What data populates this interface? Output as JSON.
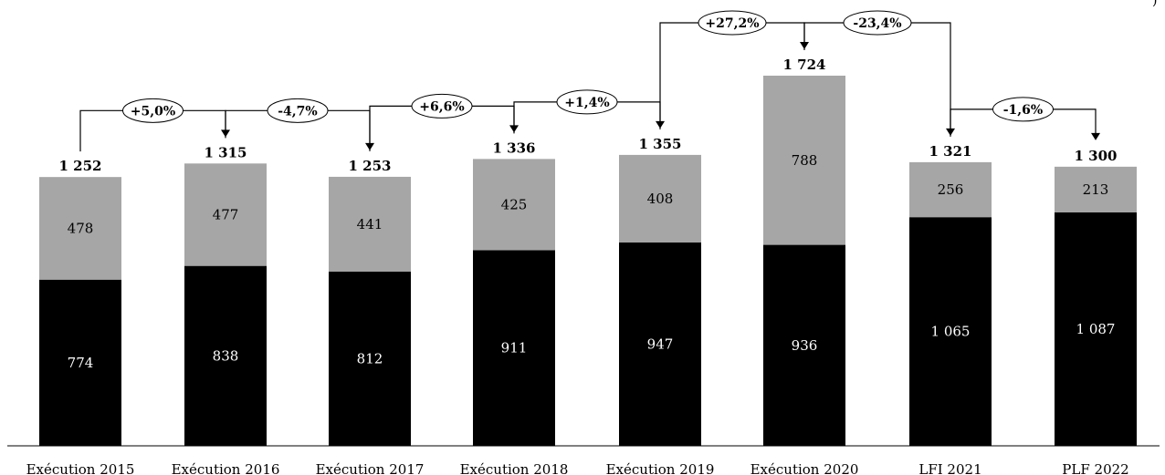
{
  "chart_data": {
    "type": "bar",
    "stacked": true,
    "categories": [
      "Exécution 2015",
      "Exécution 2016",
      "Exécution 2017",
      "Exécution 2018",
      "Exécution 2019",
      "Exécution 2020",
      "LFI 2021",
      "PLF 2022"
    ],
    "series": [
      {
        "values": [
          774,
          838,
          812,
          911,
          947,
          936,
          1065,
          1087
        ],
        "value_labels": [
          "774",
          "838",
          "812",
          "911",
          "947",
          "936",
          "1 065",
          "1 087"
        ],
        "color": "#000000"
      },
      {
        "values": [
          478,
          477,
          441,
          425,
          408,
          788,
          256,
          213
        ],
        "value_labels": [
          "478",
          "477",
          "441",
          "425",
          "408",
          "788",
          "256",
          "213"
        ],
        "color": "#a6a6a6"
      }
    ],
    "totals": [
      1252,
      1315,
      1253,
      1336,
      1355,
      1724,
      1321,
      1300
    ],
    "total_labels": [
      "1 252",
      "1 315",
      "1 253",
      "1 336",
      "1 355",
      "1 724",
      "1 321",
      "1 300"
    ],
    "changes": [
      "+5,0%",
      "-4,7%",
      "+6,6%",
      "+1,4%",
      "+27,2%",
      "-23,4%",
      "-1,6%"
    ],
    "title": "",
    "xlabel": "",
    "ylabel": "",
    "ylim": [
      0,
      1800
    ],
    "grid": false,
    "legend": "none"
  },
  "corner_text": ")"
}
